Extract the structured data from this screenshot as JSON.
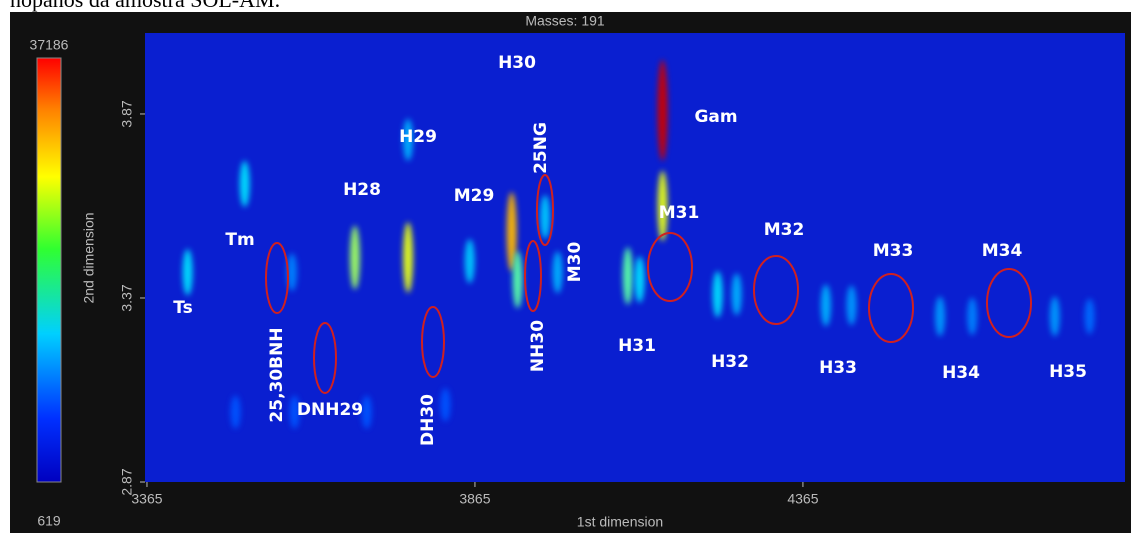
{
  "caption": "nopanos da amostra SOL-AM.",
  "chart_data": {
    "type": "chromatogram",
    "title": "Masses: 191",
    "x_label": "1st dimension",
    "y_label": "2nd dimension",
    "xlim": [
      3362,
      4856
    ],
    "ylim": [
      2.87,
      4.09
    ],
    "xticks": [
      3365,
      3865,
      4365
    ],
    "yticks": [
      2.87,
      3.37,
      3.87
    ],
    "colorbar": {
      "range": [
        619,
        37186
      ],
      "ticks": [
        619,
        37186
      ]
    },
    "peaks": {
      "x": [
        3427,
        3514,
        3586,
        3682,
        3763,
        3763,
        3857,
        3921,
        3930,
        3972,
        3991,
        4098,
        4116,
        4151,
        4151,
        4235,
        4264,
        4400,
        4439,
        4574,
        4623,
        4749,
        4802,
        3500,
        3590,
        3700,
        3820
      ],
      "y": [
        3.44,
        3.68,
        3.44,
        3.48,
        3.48,
        3.8,
        3.47,
        3.55,
        3.42,
        3.59,
        3.44,
        3.43,
        3.42,
        3.88,
        3.62,
        3.38,
        3.38,
        3.35,
        3.35,
        3.32,
        3.32,
        3.32,
        3.32,
        3.06,
        3.06,
        3.06,
        3.08
      ],
      "intensity": [
        9000,
        9000,
        5000,
        17000,
        20000,
        7000,
        8000,
        24000,
        14000,
        8000,
        7000,
        14000,
        9000,
        34000,
        20000,
        9000,
        7000,
        7000,
        6000,
        6000,
        5000,
        6000,
        4000,
        3000,
        3000,
        3000,
        3000
      ]
    },
    "annotations": [
      "Ts",
      "Tm",
      "H28",
      "H29",
      "H30",
      "M29",
      "25NG",
      "M30",
      "Gam",
      "M31",
      "M32",
      "M33",
      "M34",
      "H31",
      "H32",
      "H33",
      "H34",
      "H35",
      "25,30BNH",
      "DNH29",
      "DH30",
      "NH30"
    ]
  }
}
